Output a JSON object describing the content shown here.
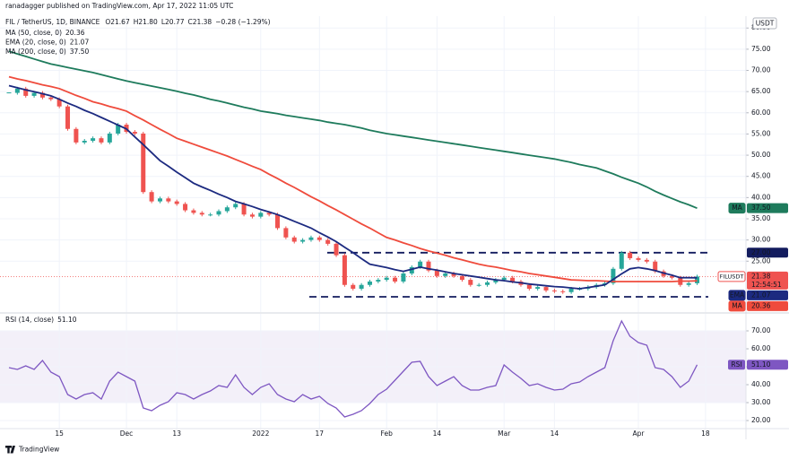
{
  "header": {
    "text": "ranadagger published on TradingView.com, Apr 17, 2022 11:05 UTC"
  },
  "footer": {
    "logo": "TradingView"
  },
  "chart_data": [
    {
      "type": "candlestick",
      "title": "FIL / TetherUS, 1D, BINANCE",
      "stats": [
        "O21.67",
        "H21.80",
        "L20.77",
        "C21.38",
        "−0.28 (−1.29%)"
      ],
      "unit": "USDT",
      "grid": true,
      "up_color": "#26a69a",
      "down_color": "#ef5350",
      "categories": [
        null,
        null,
        null,
        null,
        null,
        null,
        "15",
        null,
        null,
        null,
        null,
        null,
        null,
        null,
        "Dec",
        null,
        null,
        null,
        null,
        null,
        "13",
        null,
        null,
        null,
        null,
        null,
        null,
        null,
        null,
        null,
        "2022",
        null,
        null,
        null,
        null,
        null,
        null,
        "17",
        null,
        null,
        null,
        null,
        null,
        null,
        null,
        "Feb",
        null,
        null,
        null,
        null,
        null,
        "14",
        null,
        null,
        null,
        null,
        null,
        null,
        null,
        "Mar",
        null,
        null,
        null,
        null,
        null,
        "14",
        null,
        null,
        null,
        null,
        null,
        null,
        null,
        null,
        null,
        "Apr",
        null,
        null,
        null,
        null,
        null,
        null,
        null,
        "18",
        null,
        null,
        null,
        null
      ],
      "close": [
        64.7,
        65.7,
        64,
        64.7,
        63.6,
        63.2,
        61.5,
        56.2,
        53,
        53.4,
        54,
        53,
        55.1,
        57.2,
        55.5,
        55.1,
        41.3,
        39.1,
        39.8,
        39.1,
        38.5,
        37,
        36.4,
        36,
        36,
        36.8,
        37.7,
        38.5,
        36,
        35.5,
        36.4,
        36,
        32.8,
        30.6,
        29.6,
        30,
        30.6,
        30,
        29.1,
        26.4,
        19.4,
        18.5,
        19.4,
        20.2,
        20.6,
        21.1,
        20.2,
        22.1,
        23.6,
        24.9,
        22.8,
        21.5,
        22.1,
        21.5,
        20.6,
        19.4,
        19.4,
        20,
        20.6,
        21.1,
        20.2,
        19.4,
        18.5,
        18.9,
        18.1,
        17.9,
        17.7,
        18.5,
        18.5,
        18.9,
        19.4,
        19.8,
        23.2,
        27,
        25.7,
        25.3,
        24.9,
        22.6,
        21.5,
        21.1,
        19.4,
        19.8,
        21.38,
        null,
        null,
        null,
        null,
        null
      ],
      "series": [
        {
          "name": "MA (50, close, 0)",
          "tag": "MA",
          "last_label": "20.36",
          "color": "#ef4b3c",
          "values": [
            68.5,
            68.0,
            67.6,
            67.1,
            66.6,
            66.2,
            65.7,
            64.9,
            64.1,
            63.4,
            62.6,
            62.1,
            61.5,
            61.0,
            60.4,
            59.3,
            58.3,
            57.2,
            56.1,
            55.1,
            54.0,
            53.3,
            52.6,
            51.9,
            51.2,
            50.5,
            49.8,
            49.0,
            48.2,
            47.4,
            46.6,
            45.5,
            44.5,
            43.4,
            42.4,
            41.3,
            40.2,
            39.2,
            38.1,
            37.1,
            36.0,
            34.9,
            33.8,
            32.8,
            31.7,
            30.6,
            30.0,
            29.3,
            28.7,
            28.0,
            27.4,
            26.9,
            26.4,
            25.8,
            25.3,
            24.8,
            24.3,
            23.9,
            23.6,
            23.2,
            22.8,
            22.5,
            22.1,
            21.8,
            21.5,
            21.2,
            20.9,
            20.6,
            20.5,
            20.4,
            20.4,
            20.3,
            20.2,
            20.2,
            20.2,
            20.2,
            20.2,
            20.2,
            20.2,
            20.2,
            20.3,
            20.3,
            20.36,
            null,
            null,
            null,
            null,
            null
          ]
        },
        {
          "name": "EMA (20, close, 0)",
          "tag": "EMA",
          "last_label": "21.07",
          "color": "#1c2a80",
          "values": [
            66.4,
            65.9,
            65.4,
            65.0,
            64.5,
            64.0,
            63.2,
            62.3,
            61.5,
            60.6,
            59.8,
            58.9,
            58.0,
            57.1,
            56.2,
            54.3,
            52.5,
            50.6,
            48.7,
            47.4,
            46.0,
            44.7,
            43.4,
            42.5,
            41.7,
            40.8,
            40.0,
            39.1,
            38.5,
            37.9,
            37.2,
            36.6,
            36.0,
            35.2,
            34.4,
            33.6,
            32.8,
            31.7,
            30.7,
            29.6,
            28.3,
            27.0,
            25.6,
            24.3,
            23.9,
            23.5,
            23.0,
            22.6,
            23.1,
            23.6,
            23.2,
            22.9,
            22.5,
            22.1,
            21.8,
            21.5,
            21.2,
            20.9,
            20.6,
            20.4,
            20.1,
            19.9,
            19.6,
            19.4,
            19.2,
            19.0,
            18.9,
            18.7,
            18.5,
            18.8,
            19.1,
            19.4,
            20.7,
            22.0,
            23.2,
            23.5,
            23.2,
            22.8,
            22.2,
            21.7,
            21.1,
            21.1,
            21.07,
            null,
            null,
            null,
            null,
            null
          ]
        },
        {
          "name": "MA (200, close, 0)",
          "tag": "MA",
          "last_label": "37.50",
          "color": "#1e7b5c",
          "values": [
            74.5,
            73.9,
            73.3,
            72.7,
            72.1,
            71.5,
            71.1,
            70.7,
            70.3,
            69.9,
            69.5,
            69.0,
            68.5,
            68.0,
            67.5,
            67.1,
            66.7,
            66.3,
            65.9,
            65.5,
            65.1,
            64.6,
            64.2,
            63.7,
            63.2,
            62.8,
            62.3,
            61.8,
            61.3,
            60.9,
            60.4,
            60.1,
            59.8,
            59.4,
            59.1,
            58.8,
            58.5,
            58.2,
            57.8,
            57.5,
            57.2,
            56.8,
            56.4,
            55.9,
            55.5,
            55.1,
            54.8,
            54.5,
            54.2,
            53.9,
            53.6,
            53.3,
            53.0,
            52.7,
            52.4,
            52.1,
            51.8,
            51.5,
            51.2,
            50.9,
            50.6,
            50.3,
            50.0,
            49.7,
            49.4,
            49.1,
            48.7,
            48.3,
            47.8,
            47.4,
            47.0,
            46.3,
            45.6,
            44.8,
            44.1,
            43.4,
            42.5,
            41.5,
            40.6,
            39.8,
            39.0,
            38.3,
            37.5,
            null,
            null,
            null,
            null,
            null
          ]
        }
      ],
      "levels": [
        {
          "value": 27,
          "label": "27.00",
          "color": "#131c5e"
        },
        {
          "value": 16.6,
          "color": "#131c5e"
        }
      ],
      "current": {
        "symbol": "FILUSDT",
        "value": 21.38,
        "label": "21.38",
        "countdown": "12:54:51",
        "color": "#ef5350"
      },
      "ylim": [
        13,
        82.8
      ],
      "yticks": [
        {
          "value": 25,
          "label": "25.00"
        },
        {
          "value": 30,
          "label": "30.00"
        },
        {
          "value": 35,
          "label": "35.00"
        },
        {
          "value": 40,
          "label": "40.00"
        },
        {
          "value": 45,
          "label": "45.00"
        },
        {
          "value": 50,
          "label": "50.00"
        },
        {
          "value": 55,
          "label": "55.00"
        },
        {
          "value": 60,
          "label": "60.00"
        },
        {
          "value": 65,
          "label": "65.00"
        },
        {
          "value": 70,
          "label": "70.00"
        },
        {
          "value": 75,
          "label": "75.00"
        },
        {
          "value": 80,
          "label": "80.00"
        }
      ]
    },
    {
      "type": "line",
      "title": "RSI (14, close)",
      "tag": "RSI",
      "last_label": "51.10",
      "color": "#7e57c2",
      "band": [
        30,
        70
      ],
      "midline": 50,
      "grid": true,
      "values": [
        49.5,
        48.5,
        50.5,
        48.5,
        53.5,
        47,
        44.5,
        34.5,
        32,
        34.5,
        35.5,
        32,
        42,
        47,
        44.5,
        42,
        27,
        25.5,
        28.5,
        30.5,
        35.5,
        34.5,
        32,
        34.5,
        36.5,
        39.5,
        38.5,
        45.5,
        38.5,
        34.5,
        38.5,
        40.5,
        34.5,
        32,
        30.5,
        34.5,
        32,
        33.5,
        29.5,
        27,
        22,
        23.5,
        25.5,
        29.5,
        34.5,
        37.5,
        42.5,
        47.5,
        52.5,
        53,
        44.5,
        39.5,
        42,
        44.5,
        39.5,
        37,
        37,
        38.5,
        39.5,
        51,
        47,
        43.5,
        39.5,
        40.5,
        38.5,
        37,
        37.5,
        40.5,
        41.5,
        44.5,
        47,
        49.5,
        64.5,
        75.5,
        67,
        63.5,
        62,
        49.5,
        48.5,
        44.5,
        38.5,
        42,
        51.1,
        null,
        null,
        null,
        null,
        null
      ],
      "ylim": [
        15.5,
        79.5
      ],
      "yticks": [
        {
          "value": 20,
          "label": "20.00"
        },
        {
          "value": 30,
          "label": "30.00"
        },
        {
          "value": 40,
          "label": "40.00"
        },
        {
          "value": 50,
          "label": "50.00"
        },
        {
          "value": 60,
          "label": "60.00"
        },
        {
          "value": 70,
          "label": "70.00"
        }
      ]
    }
  ]
}
